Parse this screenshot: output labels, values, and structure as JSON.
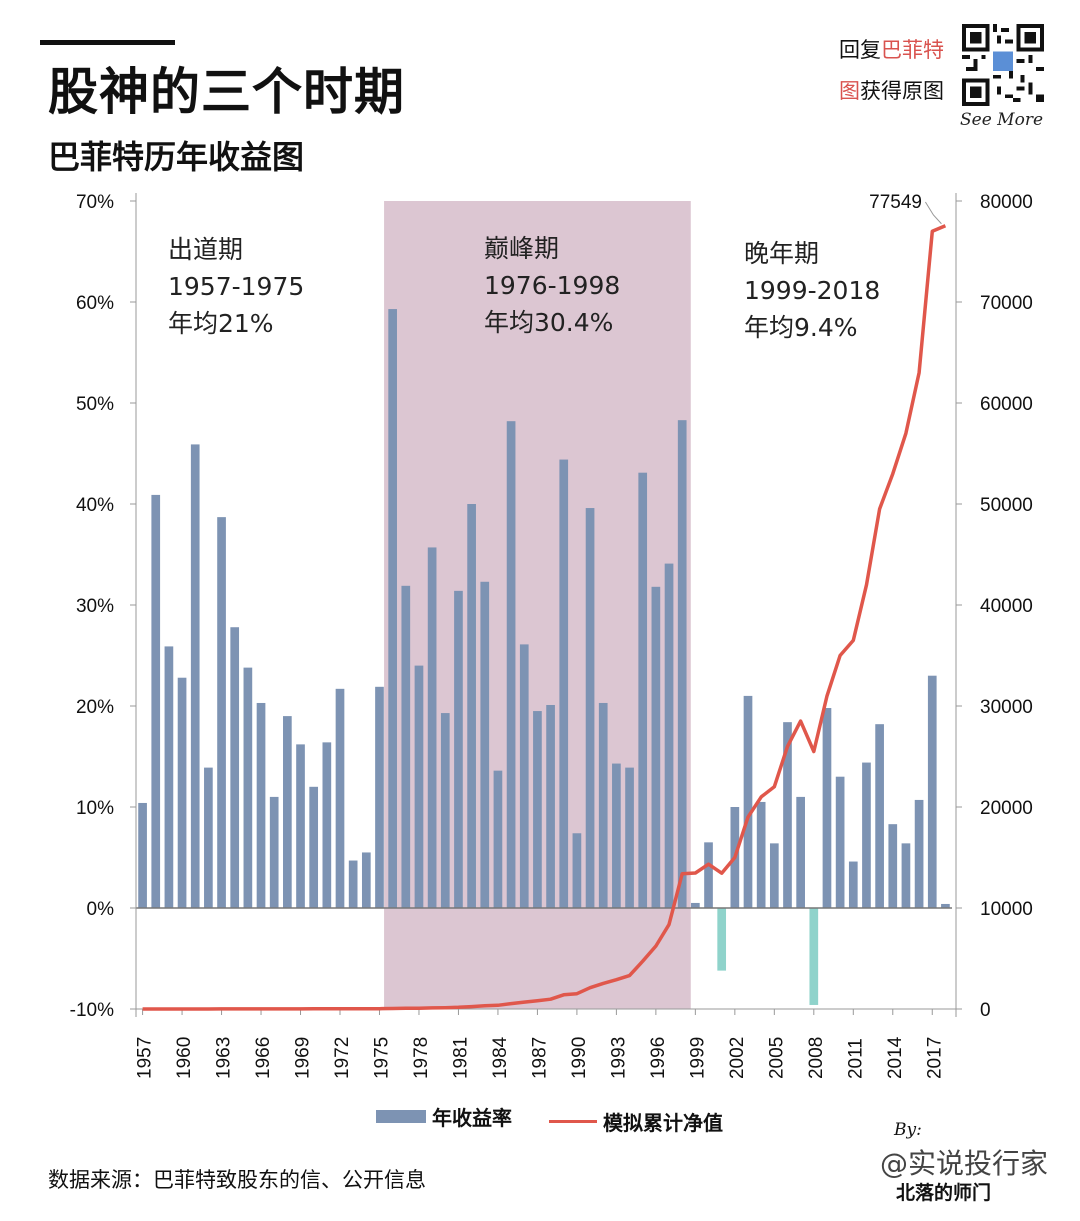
{
  "header": {
    "title": "股神的三个时期",
    "subtitle": "巴菲特历年收益图",
    "promo_prefix": "回复",
    "promo_red1": "巴菲特",
    "promo_red2": "图",
    "promo_suffix": "获得原图",
    "see_more": "See More"
  },
  "footer": {
    "source": "数据来源：巴菲特致股东的信、公开信息",
    "by": "By:",
    "watermark1": "@实说投行家",
    "watermark2": "北落的师门"
  },
  "colors": {
    "bar_positive": "#7d93b3",
    "bar_negative": "#8fd3cb",
    "line": "#e0574b",
    "peak_shade": "#dcc6d2"
  },
  "chart_data": {
    "type": "bar",
    "title": "巴菲特历年收益图",
    "years": [
      1957,
      1958,
      1959,
      1960,
      1961,
      1962,
      1963,
      1964,
      1965,
      1966,
      1967,
      1968,
      1969,
      1970,
      1971,
      1972,
      1973,
      1974,
      1975,
      1976,
      1977,
      1978,
      1979,
      1980,
      1981,
      1982,
      1983,
      1984,
      1985,
      1986,
      1987,
      1988,
      1989,
      1990,
      1991,
      1992,
      1993,
      1994,
      1995,
      1996,
      1997,
      1998,
      1999,
      2000,
      2001,
      2002,
      2003,
      2004,
      2005,
      2006,
      2007,
      2008,
      2009,
      2010,
      2011,
      2012,
      2013,
      2014,
      2015,
      2016,
      2017,
      2018
    ],
    "x_tick_labels": [
      "1957",
      "1960",
      "1963",
      "1966",
      "1969",
      "1972",
      "1975",
      "1978",
      "1981",
      "1984",
      "1987",
      "1990",
      "1993",
      "1996",
      "1999",
      "2002",
      "2005",
      "2008",
      "2011",
      "2014",
      "2017"
    ],
    "series": [
      {
        "name": "年收益率",
        "axis": "left",
        "unit": "%",
        "values": [
          10.4,
          40.9,
          25.9,
          22.8,
          45.9,
          13.9,
          38.7,
          27.8,
          23.8,
          20.3,
          11.0,
          19.0,
          16.2,
          12.0,
          16.4,
          21.7,
          4.7,
          5.5,
          21.9,
          59.3,
          31.9,
          24.0,
          35.7,
          19.3,
          31.4,
          40.0,
          32.3,
          13.6,
          48.2,
          26.1,
          19.5,
          20.1,
          44.4,
          7.4,
          39.6,
          20.3,
          14.3,
          13.9,
          43.1,
          31.8,
          34.1,
          48.3,
          0.5,
          6.5,
          -6.2,
          10.0,
          21.0,
          10.5,
          6.4,
          18.4,
          11.0,
          -9.6,
          19.8,
          13.0,
          4.6,
          14.4,
          18.2,
          8.3,
          6.4,
          10.7,
          23.0,
          0.4
        ]
      },
      {
        "name": "模拟累计净值",
        "axis": "right",
        "values": [
          1,
          1.4,
          1.8,
          2.2,
          3.2,
          3.6,
          5.0,
          6.4,
          7.9,
          9.5,
          10.5,
          12.5,
          14.5,
          16.3,
          19.0,
          23.1,
          24.2,
          25.5,
          31.1,
          49.5,
          65.3,
          81.0,
          109.9,
          131.1,
          172.3,
          241.2,
          319.9,
          363.4,
          538.6,
          679.2,
          811.6,
          974.7,
          1407.5,
          1511.7,
          2110.3,
          2538.7,
          2901.7,
          3305.0,
          4729.5,
          6233.4,
          8358.9,
          13396.1,
          13463.1,
          14338.2,
          13449.1,
          15000,
          19000,
          21000,
          22000,
          26000,
          28500,
          25500,
          31000,
          35000,
          36500,
          42000,
          49500,
          53000,
          57000,
          63000,
          77000,
          77549
        ]
      }
    ],
    "y_left": {
      "min": -10,
      "max": 70,
      "ticks": [
        "-10%",
        "0%",
        "10%",
        "20%",
        "30%",
        "40%",
        "50%",
        "60%",
        "70%"
      ]
    },
    "y_right": {
      "min": 0,
      "max": 80000,
      "ticks": [
        "0",
        "10000",
        "20000",
        "30000",
        "40000",
        "50000",
        "60000",
        "70000",
        "80000"
      ]
    },
    "end_label": "77549",
    "periods": [
      {
        "name": "出道期",
        "years": "1957-1975",
        "avg": "年均21%"
      },
      {
        "name": "巅峰期",
        "years": "1976-1998",
        "avg": "年均30.4%",
        "shaded": true,
        "from": 1976,
        "to": 1998
      },
      {
        "name": "晚年期",
        "years": "1999-2018",
        "avg": "年均9.4%"
      }
    ],
    "legend_position": "bottom"
  }
}
